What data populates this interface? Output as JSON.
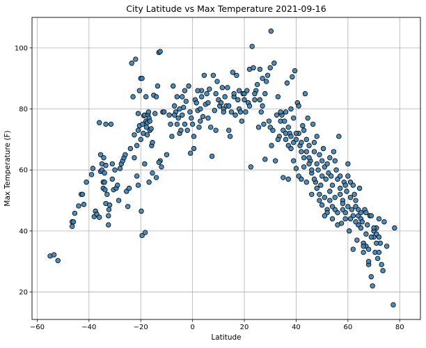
{
  "chart_data": {
    "type": "scatter",
    "title": "City Latitude vs Max Temperature 2021-09-16",
    "xlabel": "Latitude",
    "ylabel": "Max Temperature (F)",
    "xlim": [
      -62,
      88
    ],
    "ylim": [
      11,
      110
    ],
    "xticks": [
      -60,
      -40,
      -20,
      0,
      20,
      40,
      60,
      80
    ],
    "yticks": [
      20,
      40,
      60,
      80,
      100
    ],
    "grid": true,
    "colors": {
      "marker_fill": "#3b7fb2",
      "marker_edge": "#000000",
      "grid": "#b0b0b0"
    },
    "points": [
      [
        -55,
        31.8
      ],
      [
        -53.5,
        32.2
      ],
      [
        -52,
        30.3
      ],
      [
        -46.5,
        41.5
      ],
      [
        -46.5,
        43
      ],
      [
        -46,
        43
      ],
      [
        -45.5,
        45.8
      ],
      [
        -44,
        48.2
      ],
      [
        -43,
        52
      ],
      [
        -42.5,
        52
      ],
      [
        -42,
        48.7
      ],
      [
        -41,
        56
      ],
      [
        -39,
        58.5
      ],
      [
        -38.5,
        60.5
      ],
      [
        -38,
        44.7
      ],
      [
        -37.5,
        46.5
      ],
      [
        -37,
        45.5
      ],
      [
        -36,
        44.5
      ],
      [
        -36,
        75.5
      ],
      [
        -35.5,
        65
      ],
      [
        -35.5,
        59.5
      ],
      [
        -35,
        62
      ],
      [
        -35,
        60
      ],
      [
        -34.5,
        56
      ],
      [
        -34.5,
        54
      ],
      [
        -34.3,
        64
      ],
      [
        -34,
        59
      ],
      [
        -34,
        56
      ],
      [
        -33.8,
        53.5
      ],
      [
        -33.5,
        75
      ],
      [
        -33.5,
        61.5
      ],
      [
        -33.5,
        49
      ],
      [
        -33,
        52
      ],
      [
        -32.5,
        45
      ],
      [
        -32.5,
        42
      ],
      [
        -32.3,
        47
      ],
      [
        -32,
        48.5
      ],
      [
        -31.5,
        75
      ],
      [
        -31,
        62
      ],
      [
        -31,
        57
      ],
      [
        -30.5,
        53.5
      ],
      [
        -30,
        60
      ],
      [
        -29.5,
        54
      ],
      [
        -29,
        55
      ],
      [
        -28.5,
        50
      ],
      [
        -28,
        60.5
      ],
      [
        -27.5,
        62
      ],
      [
        -27,
        63
      ],
      [
        -26.5,
        64
      ],
      [
        -26,
        65
      ],
      [
        -25.5,
        53
      ],
      [
        -25,
        48
      ],
      [
        -24.5,
        54
      ],
      [
        -24,
        67
      ],
      [
        -23.5,
        95
      ],
      [
        -23,
        84
      ],
      [
        -22.5,
        71.5
      ],
      [
        -22.5,
        64
      ],
      [
        -22,
        96.3
      ],
      [
        -21.5,
        68
      ],
      [
        -21.5,
        58
      ],
      [
        -21,
        55
      ],
      [
        -21,
        78.5
      ],
      [
        -21,
        73
      ],
      [
        -20.5,
        86
      ],
      [
        -20.5,
        74.5
      ],
      [
        -20,
        90
      ],
      [
        -20,
        70
      ],
      [
        -19.8,
        46.5
      ],
      [
        -19.5,
        90
      ],
      [
        -19.5,
        38.5
      ],
      [
        -19.3,
        75
      ],
      [
        -19,
        72
      ],
      [
        -18.8,
        77.8
      ],
      [
        -18.5,
        78
      ],
      [
        -18.5,
        62
      ],
      [
        -18.3,
        39.5
      ],
      [
        -18,
        84
      ],
      [
        -18,
        76
      ],
      [
        -17.8,
        74
      ],
      [
        -17.5,
        75.5
      ],
      [
        -17.5,
        71.5
      ],
      [
        -17.2,
        78
      ],
      [
        -17,
        79
      ],
      [
        -16.8,
        77
      ],
      [
        -16.5,
        76
      ],
      [
        -16.5,
        73
      ],
      [
        -16,
        73.5
      ],
      [
        -15.8,
        68
      ],
      [
        -15.5,
        69
      ],
      [
        -15,
        84.5
      ],
      [
        -14.5,
        78.5
      ],
      [
        -14,
        84
      ],
      [
        -13.5,
        87.5
      ],
      [
        -13,
        98.5
      ],
      [
        -12.5,
        98.8
      ],
      [
        -12.5,
        63
      ],
      [
        -12,
        61
      ],
      [
        -11.5,
        79
      ],
      [
        -16.8,
        56
      ],
      [
        -15.5,
        59
      ],
      [
        -14,
        57.5
      ],
      [
        -13,
        62.5
      ],
      [
        -11,
        79
      ],
      [
        -10,
        65
      ],
      [
        -9,
        78
      ],
      [
        -8.5,
        75
      ],
      [
        -8,
        71
      ],
      [
        -7.5,
        87.5
      ],
      [
        -7,
        81
      ],
      [
        -6.5,
        79
      ],
      [
        -6,
        84
      ],
      [
        -5.5,
        77
      ],
      [
        -5,
        72
      ],
      [
        -4.5,
        73
      ],
      [
        -4,
        78
      ],
      [
        -3.5,
        80.5
      ],
      [
        -3,
        75
      ],
      [
        -2.5,
        82.5
      ],
      [
        -2,
        73
      ],
      [
        -1.5,
        87.5
      ],
      [
        -1,
        79
      ],
      [
        -0.5,
        77
      ],
      [
        0,
        75
      ],
      [
        -0.8,
        65.5
      ],
      [
        0.5,
        67
      ],
      [
        0.5,
        71
      ],
      [
        1,
        83
      ],
      [
        1.5,
        82
      ],
      [
        2,
        79.5
      ],
      [
        2.5,
        74
      ],
      [
        3,
        76
      ],
      [
        3.5,
        84
      ],
      [
        3.5,
        86
      ],
      [
        4,
        77.5
      ],
      [
        4.5,
        91
      ],
      [
        5,
        81.5
      ],
      [
        5.5,
        85
      ],
      [
        6,
        77
      ],
      [
        6.5,
        86.5
      ],
      [
        7,
        74
      ],
      [
        7.5,
        64.5
      ],
      [
        8,
        91
      ],
      [
        8.5,
        79.5
      ],
      [
        9,
        73
      ],
      [
        9.5,
        89
      ],
      [
        10,
        83
      ],
      [
        10.5,
        81
      ],
      [
        11,
        82
      ],
      [
        11.5,
        87
      ],
      [
        12,
        80
      ],
      [
        12.5,
        84
      ],
      [
        13,
        81
      ],
      [
        13.5,
        87
      ],
      [
        14,
        73
      ],
      [
        14.5,
        71
      ],
      [
        15,
        79
      ],
      [
        15.5,
        92
      ],
      [
        16,
        84
      ],
      [
        16.5,
        78
      ],
      [
        17,
        91
      ],
      [
        17.5,
        83
      ],
      [
        18,
        80
      ],
      [
        18.5,
        79
      ],
      [
        19,
        76
      ],
      [
        19.5,
        85
      ],
      [
        20,
        85
      ],
      [
        20.5,
        79
      ],
      [
        21,
        86
      ],
      [
        21.5,
        82
      ],
      [
        22,
        93
      ],
      [
        22.5,
        61
      ],
      [
        23,
        100.5
      ],
      [
        23.5,
        93.5
      ],
      [
        24,
        83
      ],
      [
        24.5,
        86
      ],
      [
        25,
        88
      ],
      [
        25.5,
        74
      ],
      [
        26,
        93
      ],
      [
        26.5,
        79
      ],
      [
        27,
        81
      ],
      [
        27.5,
        75
      ],
      [
        28,
        63.5
      ],
      [
        28.5,
        89
      ],
      [
        29,
        91
      ],
      [
        29.5,
        76
      ],
      [
        30,
        93.5
      ],
      [
        30.3,
        105.5
      ],
      [
        30.5,
        68
      ],
      [
        31,
        73
      ],
      [
        31.5,
        95
      ],
      [
        32,
        63
      ],
      [
        32.5,
        78
      ],
      [
        33,
        84
      ],
      [
        33.5,
        71
      ],
      [
        34,
        76
      ],
      [
        34.5,
        78
      ],
      [
        35,
        57.5
      ],
      [
        35.5,
        76
      ],
      [
        36,
        79
      ],
      [
        36.5,
        88.5
      ],
      [
        37,
        57
      ],
      [
        37.5,
        72
      ],
      [
        38,
        80
      ],
      [
        38.5,
        90.5
      ],
      [
        39,
        63
      ],
      [
        39.5,
        92.5
      ],
      [
        40,
        60.5
      ],
      [
        40.5,
        82
      ],
      [
        41,
        81
      ],
      [
        41.5,
        68
      ],
      [
        42,
        57
      ],
      [
        42.5,
        74.5
      ],
      [
        43,
        73
      ],
      [
        43.5,
        85
      ],
      [
        44,
        70
      ],
      [
        44.5,
        77
      ],
      [
        45,
        68
      ],
      [
        45.5,
        63
      ],
      [
        46,
        59
      ],
      [
        46.5,
        75
      ],
      [
        47,
        69
      ],
      [
        47.5,
        56
      ],
      [
        48,
        62
      ],
      [
        48.5,
        60
      ],
      [
        49,
        65
      ],
      [
        49.5,
        55
      ],
      [
        50,
        48.5
      ],
      [
        50.5,
        67
      ],
      [
        51,
        61
      ],
      [
        51.5,
        57
      ],
      [
        52,
        47
      ],
      [
        52.5,
        59
      ],
      [
        53,
        64
      ],
      [
        53.5,
        58
      ],
      [
        54,
        44
      ],
      [
        54.5,
        66
      ],
      [
        55,
        51
      ],
      [
        55.5,
        60
      ],
      [
        56,
        46
      ],
      [
        56.5,
        71
      ],
      [
        57,
        54
      ],
      [
        57.5,
        42.5
      ],
      [
        58,
        50
      ],
      [
        58.5,
        56
      ],
      [
        59,
        44
      ],
      [
        59.5,
        53
      ],
      [
        60,
        48
      ],
      [
        60.5,
        40
      ],
      [
        61,
        56
      ],
      [
        61.5,
        47
      ],
      [
        62,
        34
      ],
      [
        62.5,
        52
      ],
      [
        63,
        48
      ],
      [
        63.5,
        37
      ],
      [
        64,
        45
      ],
      [
        64.5,
        54
      ],
      [
        65,
        44
      ],
      [
        65.5,
        43
      ],
      [
        66,
        33
      ],
      [
        66.5,
        47
      ],
      [
        67,
        39
      ],
      [
        67.5,
        42
      ],
      [
        68,
        29
      ],
      [
        68.5,
        45
      ],
      [
        69,
        25
      ],
      [
        69.5,
        22
      ],
      [
        70,
        38
      ],
      [
        70.5,
        33
      ],
      [
        71,
        41
      ],
      [
        71.5,
        31
      ],
      [
        72,
        44
      ],
      [
        72.5,
        36
      ],
      [
        73,
        29
      ],
      [
        73.5,
        27
      ],
      [
        74,
        43
      ],
      [
        75,
        35
      ],
      [
        77.5,
        15.8
      ],
      [
        78,
        41
      ],
      [
        -3,
        86
      ],
      [
        -4,
        84
      ],
      [
        -5,
        80
      ],
      [
        -6,
        75
      ],
      [
        -7,
        78
      ],
      [
        2,
        86
      ],
      [
        3,
        80
      ],
      [
        6,
        82
      ],
      [
        9,
        85
      ],
      [
        12,
        79
      ],
      [
        14,
        81
      ],
      [
        16,
        85
      ],
      [
        18,
        86
      ],
      [
        20,
        83
      ],
      [
        22,
        81
      ],
      [
        24,
        85
      ],
      [
        26,
        83
      ],
      [
        27,
        90
      ],
      [
        28,
        85
      ],
      [
        30,
        74
      ],
      [
        33,
        70
      ],
      [
        34,
        79
      ],
      [
        35,
        73
      ],
      [
        36,
        70
      ],
      [
        37,
        68
      ],
      [
        38,
        67
      ],
      [
        39,
        69
      ],
      [
        40,
        70
      ],
      [
        41,
        72
      ],
      [
        42,
        66
      ],
      [
        43,
        64
      ],
      [
        44,
        66
      ],
      [
        45,
        62
      ],
      [
        46,
        60
      ],
      [
        47,
        57
      ],
      [
        48,
        54
      ],
      [
        49,
        52
      ],
      [
        50,
        58
      ],
      [
        51,
        51
      ],
      [
        52,
        46
      ],
      [
        53,
        53
      ],
      [
        54,
        55
      ],
      [
        55,
        47
      ],
      [
        56,
        57
      ],
      [
        57,
        52
      ],
      [
        58,
        49
      ],
      [
        59,
        46
      ],
      [
        60,
        58
      ],
      [
        61,
        51
      ],
      [
        62,
        45
      ],
      [
        63,
        50
      ],
      [
        64,
        42
      ],
      [
        65,
        41
      ],
      [
        66,
        36
      ],
      [
        67,
        35
      ],
      [
        68,
        34
      ],
      [
        69,
        38
      ],
      [
        70,
        40
      ],
      [
        71,
        36
      ],
      [
        72,
        33
      ],
      [
        36,
        72
      ],
      [
        37,
        74
      ],
      [
        38,
        71
      ],
      [
        39,
        77
      ],
      [
        40,
        72
      ],
      [
        41,
        58
      ],
      [
        42,
        69
      ],
      [
        43,
        61
      ],
      [
        44,
        56
      ],
      [
        45,
        64
      ],
      [
        46,
        52
      ],
      [
        47,
        66
      ],
      [
        48,
        71
      ],
      [
        49,
        50
      ],
      [
        50,
        63
      ],
      [
        51,
        45
      ],
      [
        52,
        62
      ],
      [
        53,
        50
      ],
      [
        54,
        48
      ],
      [
        55,
        63
      ],
      [
        56,
        42
      ],
      [
        57,
        58
      ],
      [
        58,
        47
      ],
      [
        59,
        55
      ],
      [
        60,
        62
      ],
      [
        61,
        44
      ],
      [
        62,
        55
      ],
      [
        63,
        43
      ],
      [
        64,
        47
      ],
      [
        65,
        46
      ],
      [
        66,
        35
      ],
      [
        67,
        46
      ],
      [
        68,
        30
      ],
      [
        69,
        45
      ],
      [
        70,
        41
      ],
      [
        71,
        39
      ],
      [
        72,
        38
      ]
    ]
  }
}
